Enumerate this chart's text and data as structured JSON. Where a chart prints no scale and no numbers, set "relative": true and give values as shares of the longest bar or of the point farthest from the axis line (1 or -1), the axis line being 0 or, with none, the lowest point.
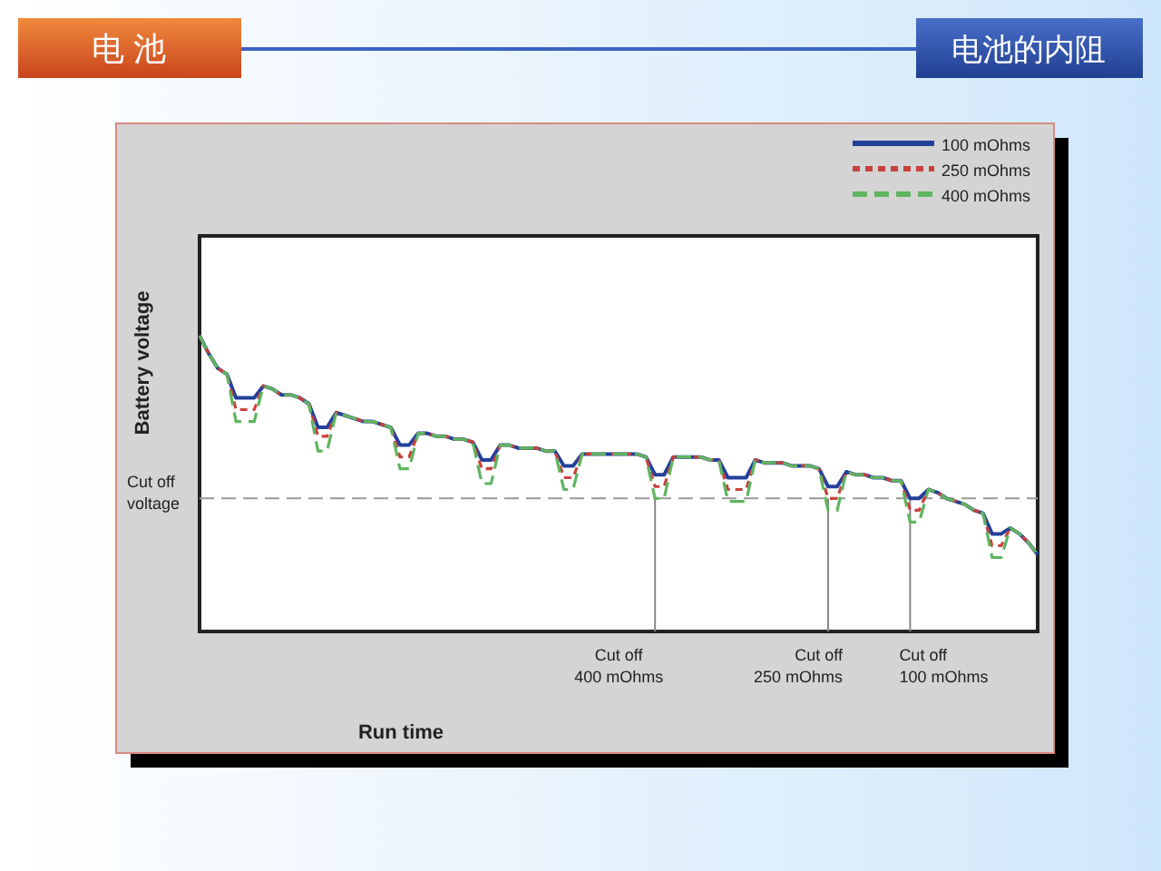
{
  "chart_data": {
    "type": "line",
    "title": "电 池",
    "subtitle": "电池的内阻",
    "xlabel": "Run time",
    "ylabel": "Battery voltage",
    "relative": true,
    "legend": "top right",
    "categories": [
      null,
      null,
      null,
      null,
      null,
      null,
      null,
      null,
      null,
      null,
      null,
      null,
      null,
      null,
      null,
      null,
      null,
      null,
      null,
      null,
      null,
      null,
      null,
      null,
      null,
      null,
      null,
      null,
      null,
      null,
      null,
      null,
      null,
      null,
      null,
      null,
      null,
      null,
      null,
      null,
      null,
      null,
      null,
      null,
      null,
      null,
      null,
      null,
      null,
      null,
      null,
      null,
      null,
      null,
      null,
      null,
      null,
      null,
      null,
      null,
      null,
      null,
      null,
      null,
      null,
      null,
      null,
      null,
      null,
      null,
      null,
      null,
      null,
      null,
      null,
      null,
      null,
      null,
      null,
      null,
      null,
      null,
      null,
      null,
      null,
      null,
      null,
      null,
      null,
      null,
      null,
      null,
      null
    ],
    "series": [
      {
        "name": "400 mOhms",
        "color": "#5fb55f",
        "line_style": "dashed",
        "values": [
          1.0,
          0.94,
          0.89,
          0.87,
          0.71,
          0.71,
          0.71,
          0.83,
          0.82,
          0.8,
          0.8,
          0.79,
          0.77,
          0.61,
          0.61,
          0.74,
          0.73,
          0.72,
          0.71,
          0.71,
          0.7,
          0.69,
          0.55,
          0.55,
          0.67,
          0.67,
          0.66,
          0.66,
          0.65,
          0.65,
          0.64,
          0.5,
          0.5,
          0.63,
          0.63,
          0.62,
          0.62,
          0.62,
          0.61,
          0.61,
          0.48,
          0.48,
          0.6,
          0.6,
          0.6,
          0.6,
          0.6,
          0.6,
          0.6,
          0.59,
          0.45,
          0.45,
          0.59,
          0.59,
          0.59,
          0.59,
          0.58,
          0.58,
          0.44,
          0.44,
          0.44,
          0.58,
          0.57,
          0.57,
          0.57,
          0.56,
          0.56,
          0.56,
          0.55,
          0.41,
          0.41,
          0.54,
          0.53,
          0.53,
          0.52,
          0.52,
          0.51,
          0.51,
          0.37,
          0.37,
          0.48,
          0.47,
          0.45,
          0.44,
          0.43,
          0.41,
          0.4,
          0.25,
          0.25,
          0.35,
          0.33,
          0.3,
          0.26
        ]
      },
      {
        "name": "250 mOhms",
        "color": "#c8413c",
        "line_style": "dotted",
        "values": [
          1.0,
          0.94,
          0.89,
          0.87,
          0.75,
          0.75,
          0.75,
          0.83,
          0.82,
          0.8,
          0.8,
          0.79,
          0.77,
          0.66,
          0.66,
          0.74,
          0.73,
          0.72,
          0.71,
          0.71,
          0.7,
          0.69,
          0.59,
          0.59,
          0.67,
          0.67,
          0.66,
          0.66,
          0.65,
          0.65,
          0.64,
          0.55,
          0.55,
          0.63,
          0.63,
          0.62,
          0.62,
          0.62,
          0.61,
          0.61,
          0.52,
          0.52,
          0.6,
          0.6,
          0.6,
          0.6,
          0.6,
          0.6,
          0.6,
          0.59,
          0.49,
          0.49,
          0.59,
          0.59,
          0.59,
          0.59,
          0.58,
          0.58,
          0.48,
          0.48,
          0.48,
          0.58,
          0.57,
          0.57,
          0.57,
          0.56,
          0.56,
          0.56,
          0.55,
          0.45,
          0.45,
          0.54,
          0.53,
          0.53,
          0.52,
          0.52,
          0.51,
          0.51,
          0.41,
          0.41,
          0.48,
          0.47,
          0.45,
          0.44,
          0.43,
          0.41,
          0.4,
          0.29,
          0.29,
          0.35,
          0.33,
          0.3,
          0.26
        ]
      },
      {
        "name": "100 mOhms",
        "color": "#23409a",
        "line_style": "solid",
        "values": [
          1.0,
          0.94,
          0.89,
          0.87,
          0.79,
          0.79,
          0.79,
          0.83,
          0.82,
          0.8,
          0.8,
          0.79,
          0.77,
          0.69,
          0.69,
          0.74,
          0.73,
          0.72,
          0.71,
          0.71,
          0.7,
          0.69,
          0.63,
          0.63,
          0.67,
          0.67,
          0.66,
          0.66,
          0.65,
          0.65,
          0.64,
          0.58,
          0.58,
          0.63,
          0.63,
          0.62,
          0.62,
          0.62,
          0.61,
          0.61,
          0.56,
          0.56,
          0.6,
          0.6,
          0.6,
          0.6,
          0.6,
          0.6,
          0.6,
          0.59,
          0.53,
          0.53,
          0.59,
          0.59,
          0.59,
          0.59,
          0.58,
          0.58,
          0.52,
          0.52,
          0.52,
          0.58,
          0.57,
          0.57,
          0.57,
          0.56,
          0.56,
          0.56,
          0.55,
          0.49,
          0.49,
          0.54,
          0.53,
          0.53,
          0.52,
          0.52,
          0.51,
          0.51,
          0.45,
          0.45,
          0.48,
          0.47,
          0.45,
          0.44,
          0.43,
          0.41,
          0.4,
          0.33,
          0.33,
          0.35,
          0.33,
          0.3,
          0.26
        ]
      }
    ],
    "ref_lines": [
      {
        "axis": "y",
        "value": 0.45,
        "label": "Cut off\nvoltage",
        "color": "#999999",
        "line_style": "dashed"
      }
    ],
    "annotations": [
      "Cut off\n400 mOhms",
      "Cut off\n250 mOhms",
      "Cut off\n100 mOhms"
    ]
  }
}
